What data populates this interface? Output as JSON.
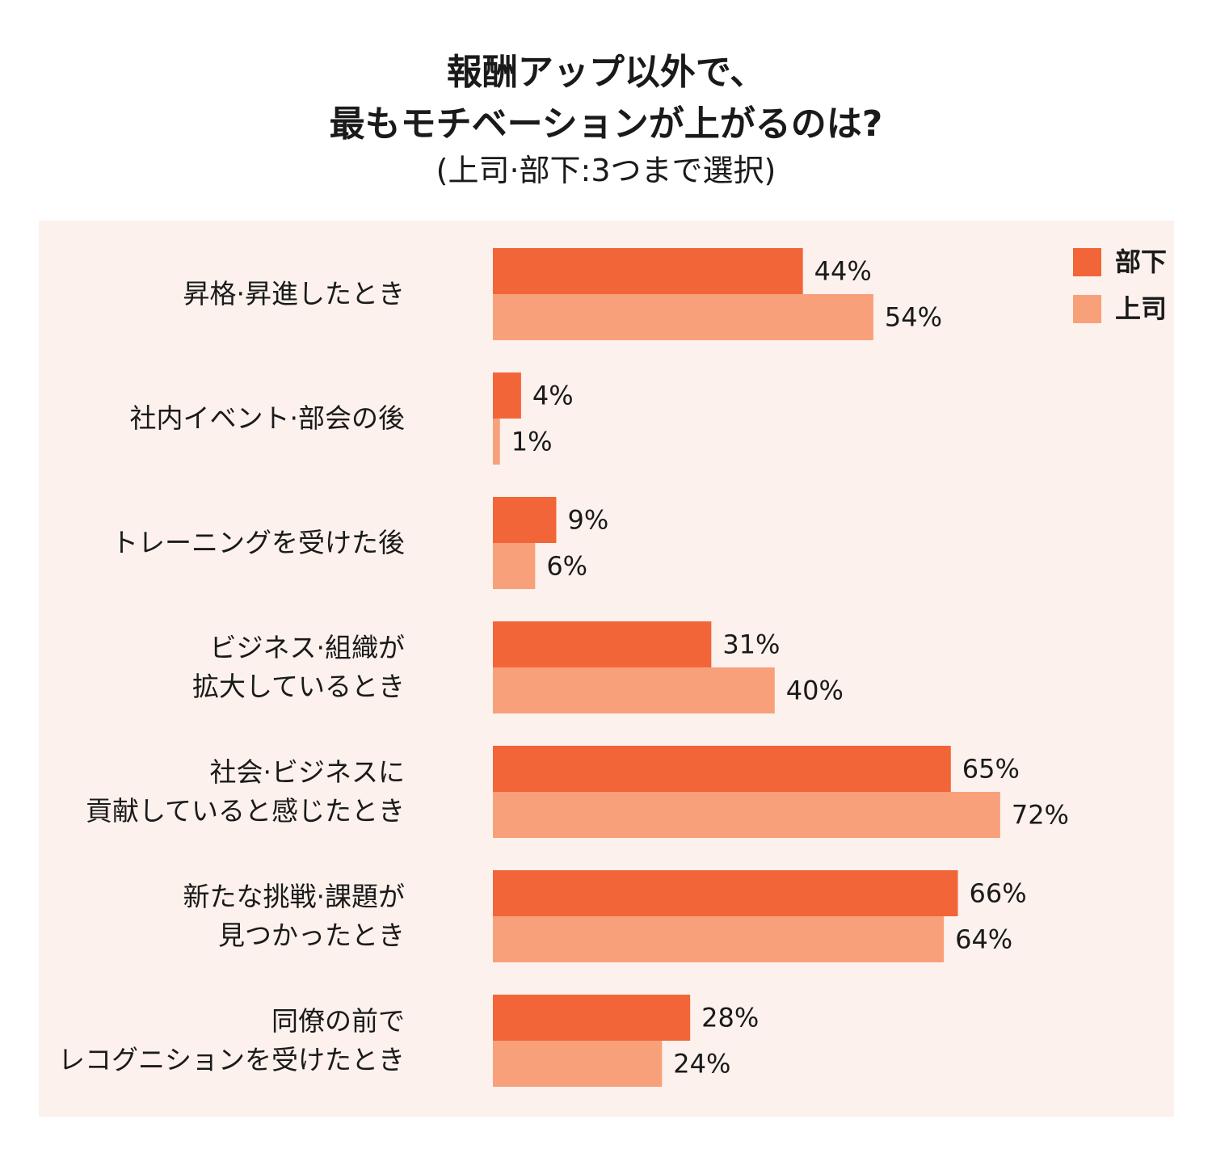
{
  "chart_data": {
    "type": "bar",
    "orientation": "horizontal",
    "title_lines": [
      "報酬アップ以外で、",
      "最もモチベーションが上がるのは?"
    ],
    "subtitle": "(上司·部下:3つまで選択)",
    "categories": [
      [
        "昇格·昇進したとき"
      ],
      [
        "社内イベント·部会の後"
      ],
      [
        "トレーニングを受けた後"
      ],
      [
        "ビジネス·組織が",
        "拡大しているとき"
      ],
      [
        "社会·ビジネスに",
        "貢献していると感じたとき"
      ],
      [
        "新たな挑戦·課題が",
        "見つかったとき"
      ],
      [
        "同僚の前で",
        "レコグニションを受けたとき"
      ]
    ],
    "series": [
      {
        "name": "部下",
        "color": "#f26538",
        "values": [
          44,
          4,
          9,
          31,
          65,
          66,
          28
        ]
      },
      {
        "name": "上司",
        "color": "#f8a07a",
        "values": [
          54,
          1,
          6,
          40,
          72,
          64,
          24
        ]
      }
    ],
    "value_suffix": "%",
    "xlim": [
      0,
      100
    ],
    "legend": "top-right",
    "grid": false
  }
}
